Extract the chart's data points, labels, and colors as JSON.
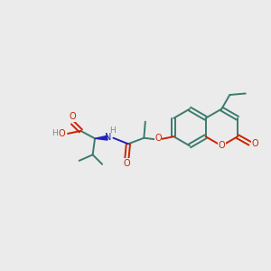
{
  "bg": "#ebebeb",
  "bc": "#3d7a6e",
  "oc": "#cc2200",
  "nc": "#2222bb",
  "hc": "#7a8a8a",
  "lw": 1.4,
  "off": 0.07,
  "fs": 7.0,
  "figsize": [
    3.0,
    3.0
  ],
  "dpi": 100,
  "xlim": [
    0,
    10
  ],
  "ylim": [
    0,
    10
  ],
  "s": 0.68
}
